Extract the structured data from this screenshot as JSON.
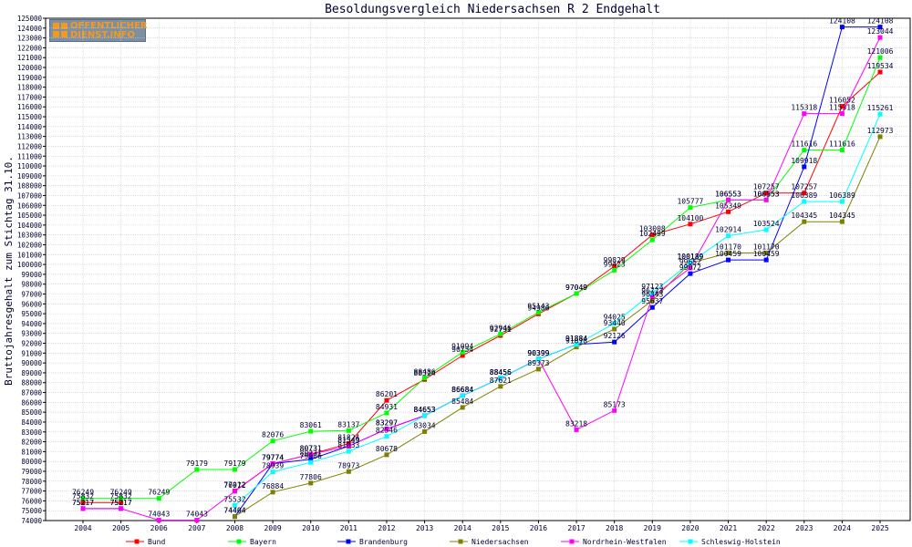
{
  "logo": {
    "line1": "OFFENTLICHER",
    "line2": "DIENST.INFO"
  },
  "chart_data": {
    "type": "line",
    "title": "Besoldungsvergleich Niedersachsen R 2 Endgehalt",
    "xlabel": "",
    "ylabel": "Bruttojahresgehalt zum Stichtag 31.10.",
    "ylim": [
      74000,
      125000
    ],
    "ytick_step": 1000,
    "grid": true,
    "legend_position": "bottom",
    "categories": [
      "2004",
      "2005",
      "2006",
      "2007",
      "2008",
      "2009",
      "2010",
      "2011",
      "2012",
      "2013",
      "2014",
      "2015",
      "2016",
      "2017",
      "2018",
      "2019",
      "2020",
      "2021",
      "2022",
      "2023",
      "2024",
      "2025"
    ],
    "series": [
      {
        "name": "Bund",
        "color": "#ff0000",
        "values": [
          75832,
          75832,
          null,
          null,
          77012,
          79774,
          80731,
          81824,
          86201,
          88324,
          90754,
          92791,
          94986,
          97049,
          99829,
          103008,
          104100,
          105349,
          107257,
          107257,
          116052,
          119534
        ]
      },
      {
        "name": "Bayern",
        "color": "#00ff00",
        "values": [
          76249,
          76249,
          76249,
          79179,
          79179,
          82076,
          83061,
          83137,
          84931,
          88486,
          91094,
          92946,
          95143,
          97049,
          99423,
          102499,
          105777,
          106553,
          106553,
          111616,
          111616,
          121006
        ]
      },
      {
        "name": "Brandenburg",
        "color": "#0000ff",
        "values": [
          75217,
          75217,
          null,
          null,
          74404,
          79774,
          80231,
          81549,
          83297,
          84653,
          86684,
          88456,
          90399,
          91884,
          92126,
          95637,
          99072,
          100459,
          100459,
          109918,
          124108,
          124108
        ]
      },
      {
        "name": "Niedersachsen",
        "color": "#808000",
        "values": [
          null,
          null,
          null,
          null,
          74404,
          76884,
          77806,
          78973,
          80678,
          83034,
          85484,
          87621,
          89373,
          91618,
          93440,
          96343,
          100139,
          101170,
          101170,
          104345,
          104345,
          112973
        ]
      },
      {
        "name": "Nordrhein-Westfalen",
        "color": "#ff00ff",
        "values": [
          75217,
          75217,
          74043,
          74043,
          76972,
          79774,
          80731,
          81549,
          83297,
          84653,
          86684,
          88456,
          90399,
          83218,
          85173,
          96723,
          99652,
          106553,
          106553,
          115318,
          115318,
          123044
        ]
      },
      {
        "name": "Schleswig-Holstein",
        "color": "#00ffff",
        "values": [
          null,
          null,
          null,
          null,
          75532,
          78939,
          79906,
          81033,
          82546,
          84653,
          86684,
          88456,
          90399,
          91884,
          94025,
          97123,
          100189,
          102914,
          103524,
          106389,
          106389,
          115261
        ]
      }
    ]
  }
}
